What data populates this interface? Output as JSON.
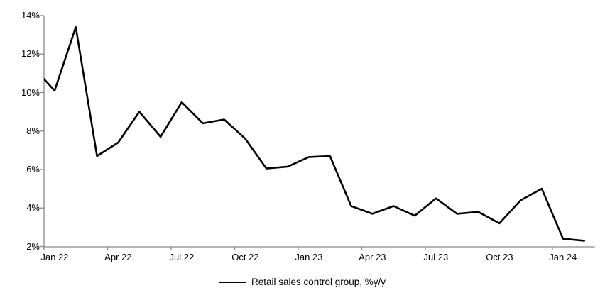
{
  "legend": {
    "label": "Retail sales control group, %y/y",
    "position": "bottom"
  },
  "colors": {
    "series_line": "#000000",
    "axis_line": "#898989",
    "text": "#000000",
    "background": "#ffffff"
  },
  "axes": {
    "y_tick_labels": [
      "2%",
      "4%",
      "6%",
      "8%",
      "10%",
      "12%",
      "14%"
    ],
    "x_tick_labels": [
      "Jan 22",
      "Apr 22",
      "Jul 22",
      "Oct 22",
      "Jan 23",
      "Apr 23",
      "Jul 23",
      "Oct 23",
      "Jan 24"
    ]
  },
  "chart_data": {
    "type": "line",
    "title": "",
    "xlabel": "",
    "ylabel": "",
    "ylim": [
      2,
      14
    ],
    "y_tick_step": 2,
    "y_tick_format": "percent",
    "grid": false,
    "legend_position": "bottom",
    "x": [
      "Jan 22",
      "Feb 22",
      "Mar 22",
      "Apr 22",
      "May 22",
      "Jun 22",
      "Jul 22",
      "Aug 22",
      "Sep 22",
      "Oct 22",
      "Nov 22",
      "Dec 22",
      "Jan 23",
      "Feb 23",
      "Mar 23",
      "Apr 23",
      "May 23",
      "Jun 23",
      "Jul 23",
      "Aug 23",
      "Sep 23",
      "Oct 23",
      "Nov 23",
      "Dec 23",
      "Jan 24",
      "Feb 24"
    ],
    "x_labeled_every": 3,
    "series": [
      {
        "name": "Retail sales control group, %y/y",
        "color": "#000000",
        "values": [
          10.1,
          13.4,
          6.7,
          7.4,
          9.0,
          7.7,
          9.5,
          8.4,
          8.6,
          7.6,
          6.05,
          6.15,
          6.65,
          6.7,
          4.1,
          3.7,
          4.1,
          3.6,
          4.5,
          3.7,
          3.8,
          3.2,
          4.4,
          5.0,
          2.4,
          2.3
        ],
        "clipped_lead_in_value": 11.3
      }
    ]
  }
}
